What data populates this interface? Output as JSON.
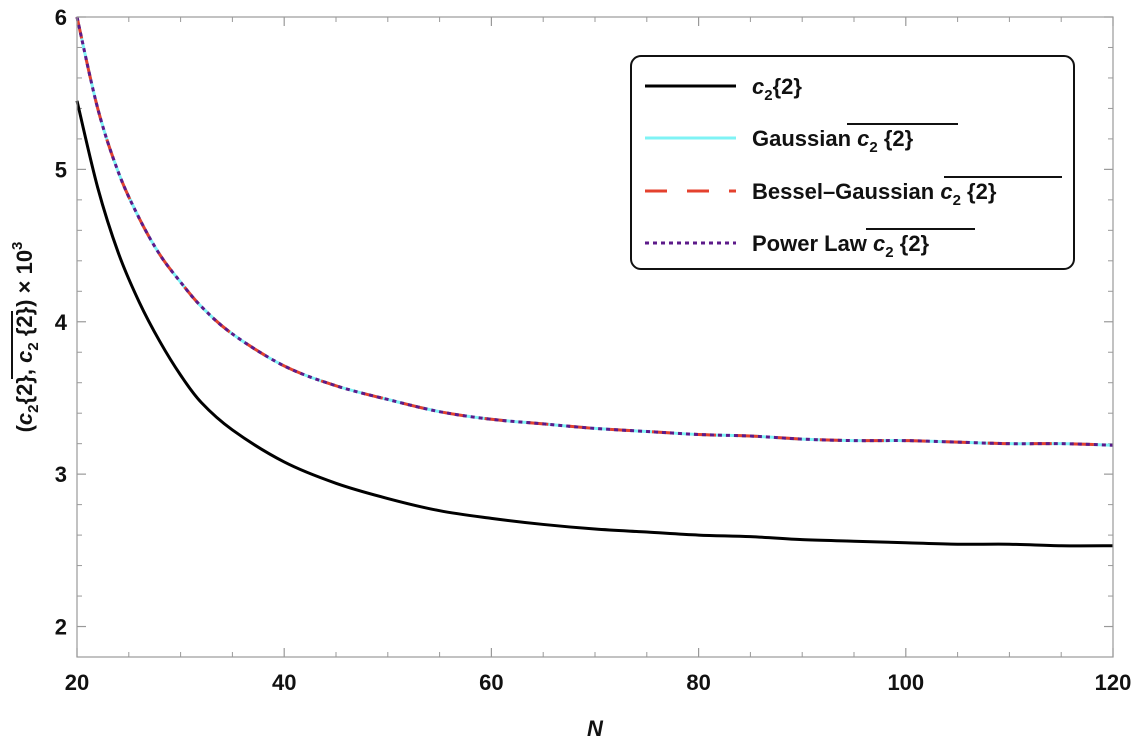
{
  "chart_data": {
    "type": "line",
    "xlabel": "N",
    "ylabel": "(c₂{2}, c₂{2}) × 10³",
    "xlim": [
      20,
      120
    ],
    "ylim": [
      1.8,
      6.0
    ],
    "x_ticks": [
      20,
      40,
      60,
      80,
      100,
      120
    ],
    "y_ticks": [
      2,
      3,
      4,
      5,
      6
    ],
    "x_minor_step": 5,
    "y_minor_step": 0.2,
    "grid": false,
    "legend_position": "top-right",
    "x": [
      20,
      22,
      24,
      26,
      28,
      30,
      32,
      35,
      40,
      45,
      50,
      55,
      60,
      65,
      70,
      75,
      80,
      85,
      90,
      95,
      100,
      105,
      110,
      115,
      120
    ],
    "series": [
      {
        "key": "c2",
        "name": "c₂{2}",
        "color": "#000000",
        "style": "solid",
        "values": [
          5.45,
          4.88,
          4.45,
          4.13,
          3.87,
          3.65,
          3.47,
          3.29,
          3.08,
          2.94,
          2.84,
          2.76,
          2.71,
          2.67,
          2.64,
          2.62,
          2.6,
          2.59,
          2.57,
          2.56,
          2.55,
          2.54,
          2.54,
          2.53,
          2.53
        ]
      },
      {
        "key": "gaussian",
        "name": "Gaussian c₂ {2}",
        "color": "#7ff3f5",
        "style": "solid",
        "values": [
          6.0,
          5.4,
          4.98,
          4.68,
          4.44,
          4.26,
          4.1,
          3.92,
          3.71,
          3.58,
          3.49,
          3.41,
          3.36,
          3.33,
          3.3,
          3.28,
          3.26,
          3.25,
          3.23,
          3.22,
          3.22,
          3.21,
          3.2,
          3.2,
          3.19
        ]
      },
      {
        "key": "bessel",
        "name": "Bessel–Gaussian c₂ {2}",
        "color": "#e4412e",
        "style": "dashed",
        "values": [
          6.0,
          5.4,
          4.98,
          4.68,
          4.44,
          4.26,
          4.1,
          3.92,
          3.71,
          3.58,
          3.49,
          3.41,
          3.36,
          3.33,
          3.3,
          3.28,
          3.26,
          3.25,
          3.23,
          3.22,
          3.22,
          3.21,
          3.2,
          3.2,
          3.19
        ]
      },
      {
        "key": "power",
        "name": "Power Law c₂ {2}",
        "color": "#5c1a8a",
        "style": "dotted",
        "values": [
          6.0,
          5.4,
          4.98,
          4.68,
          4.44,
          4.26,
          4.1,
          3.92,
          3.71,
          3.58,
          3.49,
          3.41,
          3.36,
          3.33,
          3.3,
          3.28,
          3.26,
          3.25,
          3.23,
          3.22,
          3.22,
          3.21,
          3.2,
          3.2,
          3.19
        ]
      }
    ]
  }
}
